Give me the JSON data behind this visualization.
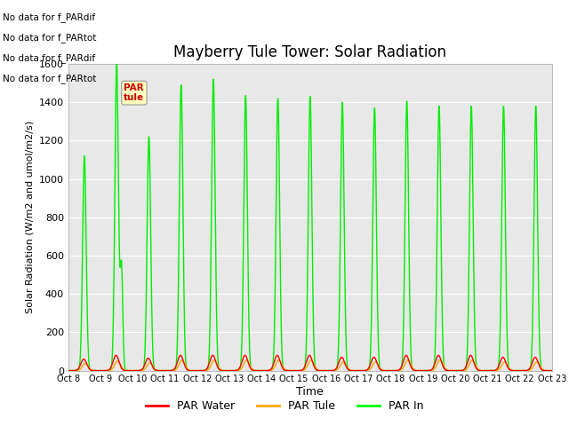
{
  "title": "Mayberry Tule Tower: Solar Radiation",
  "xlabel": "Time",
  "ylabel": "Solar Radiation (W/m2 and umol/m2/s)",
  "ylim": [
    0,
    1600
  ],
  "yticks": [
    0,
    200,
    400,
    600,
    800,
    1000,
    1200,
    1400,
    1600
  ],
  "background_color": "#e8e8e8",
  "fig_background": "#ffffff",
  "no_data_lines": [
    "No data for f_PARdif",
    "No data for f_PARtot",
    "No data for f_PARdif",
    "No data for f_PARtot"
  ],
  "legend_entries": [
    "PAR Water",
    "PAR Tule",
    "PAR In"
  ],
  "legend_colors": [
    "#ff0000",
    "#ffa500",
    "#00ff00"
  ],
  "num_days": 15,
  "day_peaks_green": [
    1120,
    1600,
    1220,
    1490,
    1520,
    1435,
    1420,
    1430,
    1400,
    1370,
    1405,
    1380,
    1380,
    1380,
    1380
  ],
  "day_peaks_red": [
    60,
    80,
    65,
    80,
    80,
    80,
    80,
    80,
    70,
    70,
    80,
    80,
    80,
    70,
    70
  ],
  "day_peaks_orange": [
    38,
    50,
    40,
    55,
    55,
    55,
    55,
    55,
    45,
    45,
    55,
    55,
    55,
    45,
    45
  ],
  "xtick_labels": [
    "Oct 8",
    "Oct 9",
    "Oct 10",
    "Oct 11",
    "Oct 12",
    "Oct 13",
    "Oct 14",
    "Oct 15",
    "Oct 16",
    "Oct 17",
    "Oct 18",
    "Oct 19",
    "Oct 20",
    "Oct 21",
    "Oct 22",
    "Oct 23"
  ],
  "grid_color": "#ffffff",
  "title_fontsize": 12,
  "sigma_green": 0.055,
  "sigma_ro": 0.09,
  "tooltip_text": "PAR\ntule",
  "tooltip_color": "#cc0000",
  "tooltip_bg": "#ffffc0"
}
